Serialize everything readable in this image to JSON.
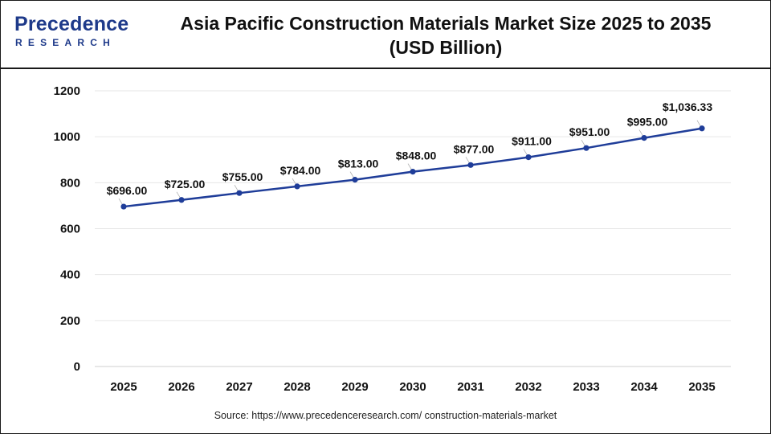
{
  "brand": {
    "name_main": "Precedence",
    "name_sub": "RESEARCH",
    "logo_color": "#1e3a8a",
    "logo_accent": "#3b82f6"
  },
  "header": {
    "title_line1": "Asia Pacific Construction Materials Market Size 2025 to 2035",
    "title_line2": "(USD Billion)"
  },
  "footer": {
    "source": "Source: https://www.precedenceresearch.com/ construction-materials-market"
  },
  "chart_data": {
    "type": "line",
    "title": "Asia Pacific Construction Materials Market Size 2025 to 2035 (USD Billion)",
    "xlabel": "",
    "ylabel": "",
    "categories": [
      "2025",
      "2026",
      "2027",
      "2028",
      "2029",
      "2030",
      "2031",
      "2032",
      "2033",
      "2034",
      "2035"
    ],
    "series": [
      {
        "values": [
          696.0,
          725.0,
          755.0,
          784.0,
          813.0,
          848.0,
          877.0,
          911.0,
          951.0,
          995.0,
          1036.33
        ],
        "labels": [
          "$696.00",
          "$725.00",
          "$755.00",
          "$784.00",
          "$813.00",
          "$848.00",
          "$877.00",
          "$911.00",
          "$951.00",
          "$995.00",
          "$1,036.33"
        ],
        "color": "#1f3d99"
      }
    ],
    "ylim": [
      0,
      1200
    ],
    "yticks": [
      "0",
      "200",
      "400",
      "600",
      "800",
      "1000",
      "1200"
    ],
    "ytick_values": [
      0,
      200,
      400,
      600,
      800,
      1000,
      1200
    ],
    "grid": true,
    "legend": "none"
  }
}
